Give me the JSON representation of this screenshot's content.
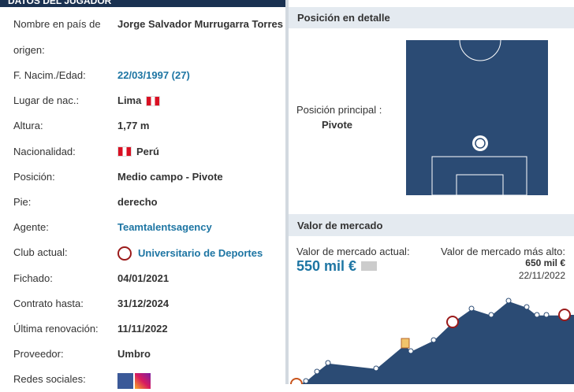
{
  "header": {
    "title": "DATOS DEL JUGADOR"
  },
  "player": {
    "rows": [
      {
        "label": "Nombre en país de origen:",
        "value": "Jorge Salvador Murrugarra Torres"
      },
      {
        "label": "F. Nacim./Edad:",
        "value": "22/03/1997 (27)"
      },
      {
        "label": "Lugar de nac.:",
        "value": "Lima"
      },
      {
        "label": "Altura:",
        "value": "1,77 m"
      },
      {
        "label": "Nacionalidad:",
        "value": "Perú"
      },
      {
        "label": "Posición:",
        "value": "Medio campo - Pivote"
      },
      {
        "label": "Pie:",
        "value": "derecho"
      },
      {
        "label": "Agente:",
        "value": "Teamtalentsagency"
      },
      {
        "label": "Club actual:",
        "value": "Universitario de Deportes"
      },
      {
        "label": "Fichado:",
        "value": "04/01/2021"
      },
      {
        "label": "Contrato hasta:",
        "value": "31/12/2024"
      },
      {
        "label": "Última renovación:",
        "value": "11/11/2022"
      },
      {
        "label": "Proveedor:",
        "value": "Umbro"
      },
      {
        "label": "Redes sociales:"
      }
    ]
  },
  "position": {
    "title": "Posición en detalle",
    "main_label": "Posición principal :",
    "main_value": "Pivote"
  },
  "market_value": {
    "title": "Valor de mercado",
    "current_label": "Valor de mercado actual:",
    "current_value": "550 mil €",
    "highest_label": "Valor de mercado más alto:",
    "highest_value": "650 mil €",
    "highest_date": "22/11/2022"
  }
}
